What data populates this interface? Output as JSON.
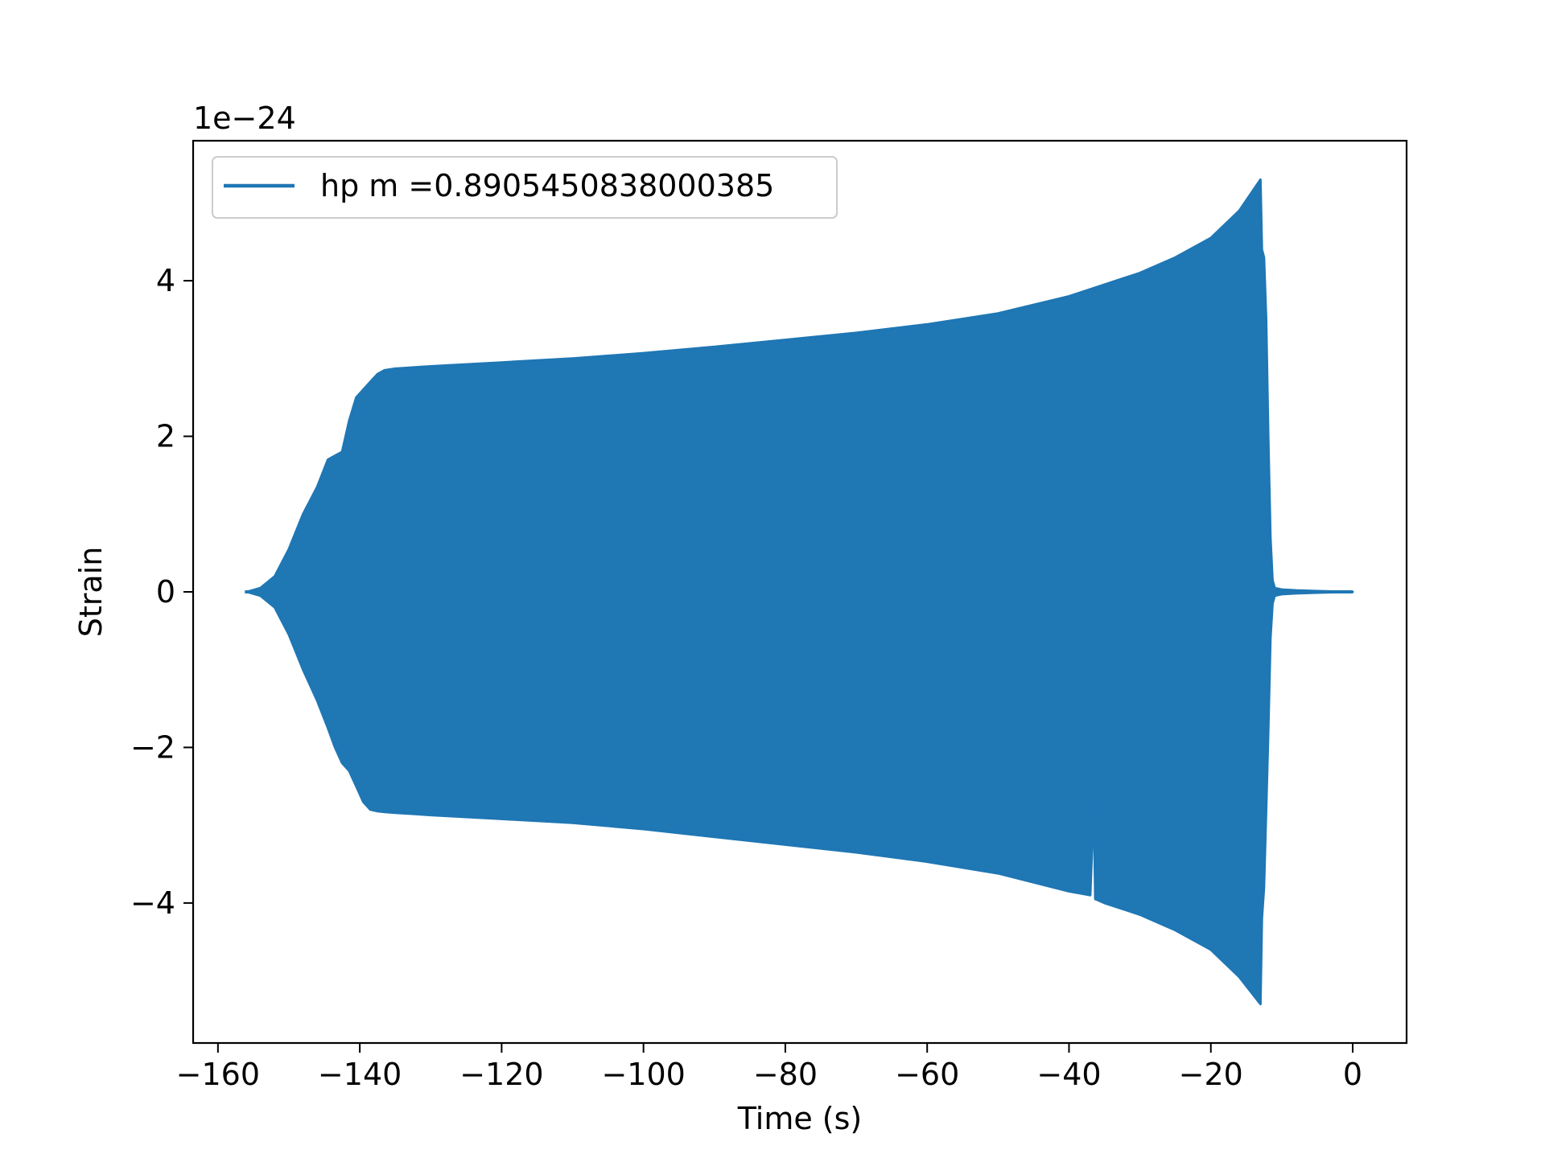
{
  "chart_data": {
    "type": "area",
    "description_free": true,
    "xlabel": "Time (s)",
    "ylabel": "Strain",
    "y_offset_text": "1e−24",
    "xlim": [
      -163.5,
      7.6
    ],
    "ylim": [
      -5.8,
      5.8
    ],
    "x_ticks": [
      -160,
      -140,
      -120,
      -100,
      -80,
      -60,
      -40,
      -20,
      0
    ],
    "x_tick_labels": [
      "−160",
      "−140",
      "−120",
      "−100",
      "−80",
      "−60",
      "−40",
      "−20",
      "0"
    ],
    "y_ticks": [
      -4,
      -2,
      0,
      2,
      4
    ],
    "y_tick_labels": [
      "−4",
      "−2",
      "0",
      "2",
      "4"
    ],
    "grid": false,
    "legend_position": "top-left",
    "series": [
      {
        "name": "hp m =0.8905450838000385",
        "color": "#1f77b4",
        "upper_envelope": {
          "x": [
            -155.9,
            -154.0,
            -152.0,
            -150.0,
            -148.0,
            -146.0,
            -144.5,
            -143.5,
            -142.5,
            -141.5,
            -140.5,
            -139.5,
            -138.5,
            -137.5,
            -136.5,
            -135.0,
            -130.0,
            -120.0,
            -110.0,
            -100.0,
            -90.0,
            -80.0,
            -70.0,
            -60.0,
            -50.0,
            -40.0,
            -35.0,
            -30.0,
            -25.0,
            -20.0,
            -16.0,
            -13.0,
            -12.8,
            -12.5,
            -12.2,
            -11.9,
            -11.6,
            -11.3,
            -11.0,
            -10.0,
            -8.0,
            -5.0,
            0.0
          ],
          "y": [
            0.0,
            0.05,
            0.2,
            0.55,
            1.0,
            1.35,
            1.7,
            1.75,
            1.8,
            2.2,
            2.5,
            2.6,
            2.7,
            2.8,
            2.85,
            2.87,
            2.9,
            2.95,
            3.0,
            3.07,
            3.15,
            3.24,
            3.33,
            3.44,
            3.58,
            3.8,
            3.95,
            4.1,
            4.3,
            4.55,
            4.9,
            5.3,
            4.4,
            4.3,
            3.5,
            2.0,
            0.7,
            0.15,
            0.05,
            0.03,
            0.02,
            0.01,
            0.0
          ]
        },
        "lower_envelope": {
          "x": [
            -155.9,
            -154.0,
            -152.0,
            -150.0,
            -148.0,
            -146.0,
            -144.5,
            -143.5,
            -142.5,
            -141.5,
            -140.5,
            -139.5,
            -138.5,
            -137.5,
            -136.5,
            -135.0,
            -130.0,
            -120.0,
            -110.0,
            -100.0,
            -90.0,
            -80.0,
            -70.0,
            -60.0,
            -50.0,
            -40.0,
            -37.0,
            -36.5,
            -36.3,
            -36.0,
            -35.0,
            -30.0,
            -25.0,
            -20.0,
            -16.0,
            -13.0,
            -12.8,
            -12.5,
            -12.2,
            -11.9,
            -11.6,
            -11.3,
            -11.0,
            -10.0,
            -8.0,
            -5.0,
            0.0
          ],
          "y": [
            0.0,
            -0.05,
            -0.2,
            -0.55,
            -1.0,
            -1.4,
            -1.75,
            -2.0,
            -2.2,
            -2.3,
            -2.5,
            -2.7,
            -2.8,
            -2.82,
            -2.83,
            -2.84,
            -2.87,
            -2.92,
            -2.97,
            -3.05,
            -3.15,
            -3.25,
            -3.35,
            -3.47,
            -3.62,
            -3.85,
            -3.9,
            -2.7,
            -3.95,
            -3.96,
            -4.0,
            -4.15,
            -4.35,
            -4.6,
            -4.95,
            -5.3,
            -4.2,
            -3.8,
            -2.8,
            -1.8,
            -0.6,
            -0.15,
            -0.05,
            -0.03,
            -0.02,
            -0.01,
            0.0
          ]
        },
        "notes_free": true
      }
    ]
  }
}
